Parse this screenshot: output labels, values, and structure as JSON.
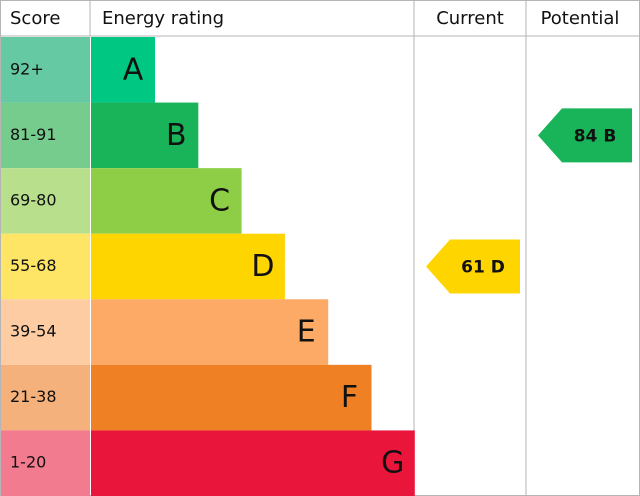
{
  "header": {
    "score": "Score",
    "rating": "Energy rating",
    "current": "Current",
    "potential": "Potential"
  },
  "bands": [
    {
      "score": "92+",
      "letter": "A",
      "color": "#00c781",
      "score_color": "#65c9a3"
    },
    {
      "score": "81-91",
      "letter": "B",
      "color": "#19b459",
      "score_color": "#76cc8c"
    },
    {
      "score": "69-80",
      "letter": "C",
      "color": "#8dce46",
      "score_color": "#b8e08c"
    },
    {
      "score": "55-68",
      "letter": "D",
      "color": "#ffd500",
      "score_color": "#ffe566"
    },
    {
      "score": "39-54",
      "letter": "E",
      "color": "#fcaa65",
      "score_color": "#fdcca3"
    },
    {
      "score": "21-38",
      "letter": "F",
      "color": "#ef8023",
      "score_color": "#f5b17b"
    },
    {
      "score": "1-20",
      "letter": "G",
      "color": "#e9153b",
      "score_color": "#f27b8f"
    }
  ],
  "current": {
    "value": 61,
    "letter": "D"
  },
  "potential": {
    "value": 84,
    "letter": "B"
  }
}
